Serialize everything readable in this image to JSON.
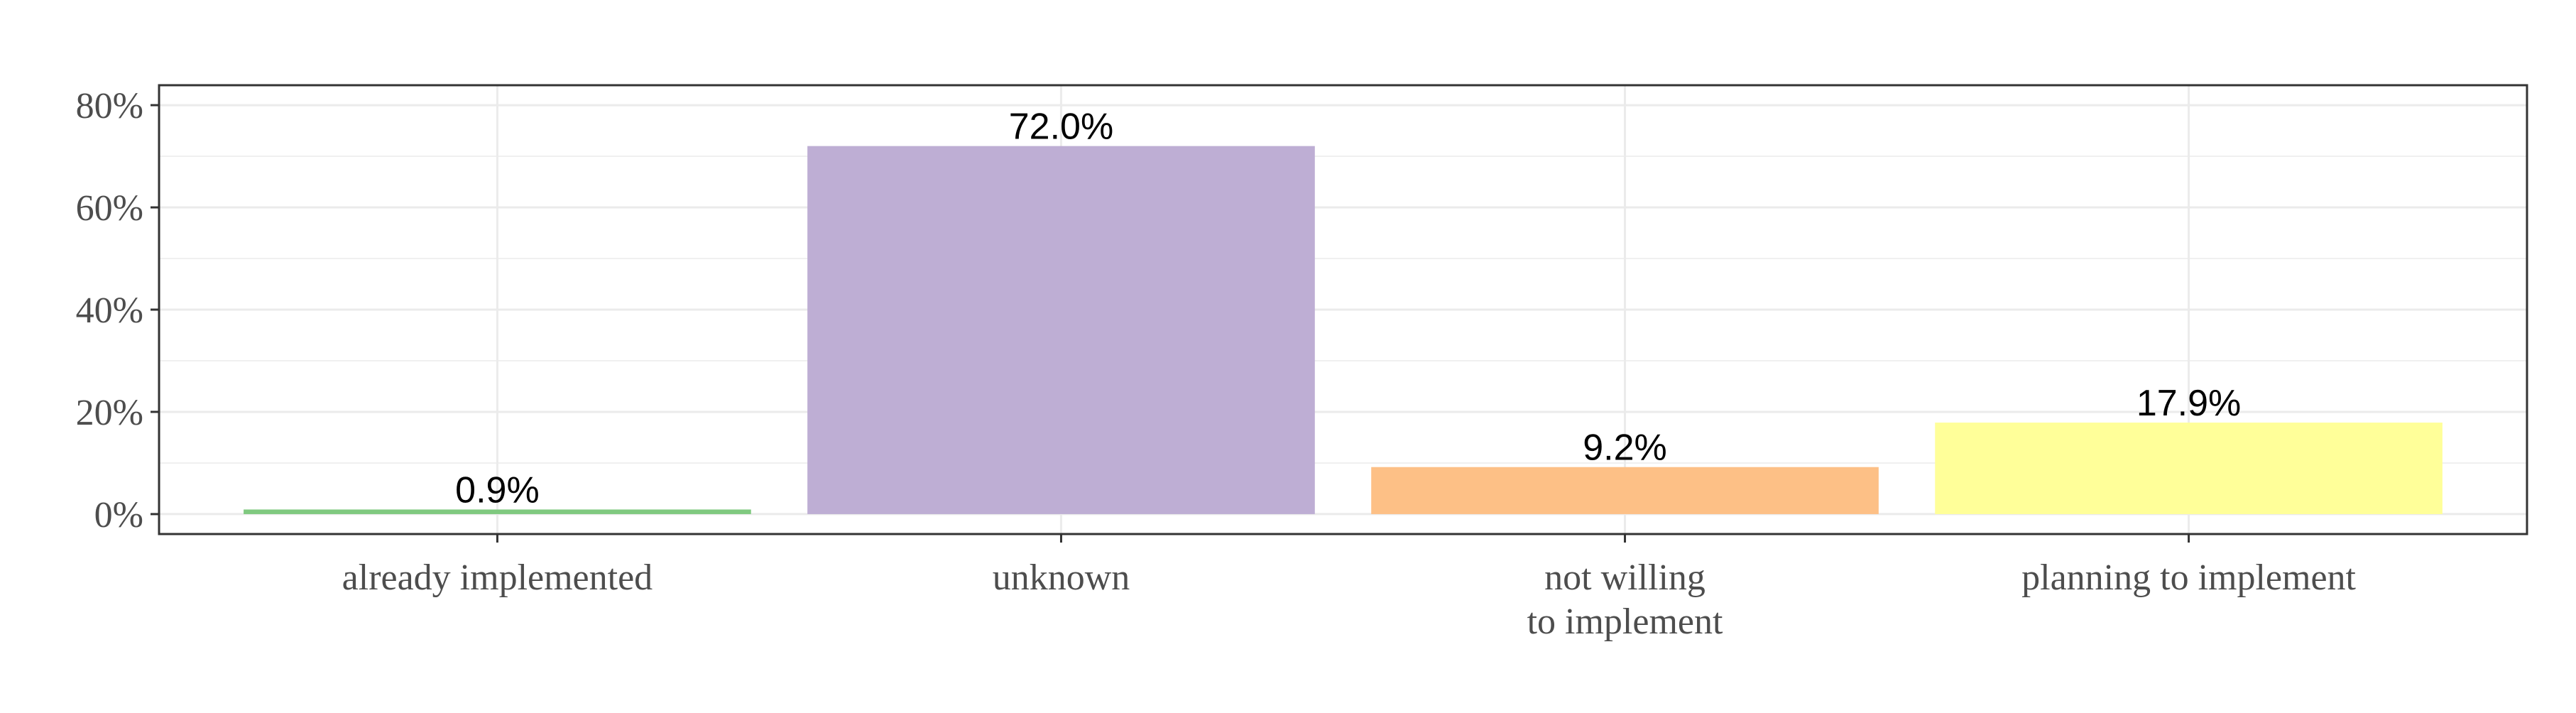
{
  "chart_data": {
    "type": "bar",
    "categories": [
      "already implemented",
      "unknown",
      "not willing\nto implement",
      "planning to implement"
    ],
    "values": [
      0.9,
      72.0,
      9.2,
      17.9
    ],
    "value_labels": [
      "0.9%",
      "72.0%",
      "9.2%",
      "17.9%"
    ],
    "colors": [
      "#7fc97f",
      "#beaed4",
      "#fdc086",
      "#ffff99"
    ],
    "ylim": [
      -3.9,
      83.9
    ],
    "yticks": [
      {
        "value": 0,
        "label": "0%"
      },
      {
        "value": 20,
        "label": "20%"
      },
      {
        "value": 40,
        "label": "40%"
      },
      {
        "value": 60,
        "label": "60%"
      },
      {
        "value": 80,
        "label": "80%"
      }
    ],
    "minor_yticks": [
      10,
      30,
      50,
      70
    ],
    "grid": true
  }
}
